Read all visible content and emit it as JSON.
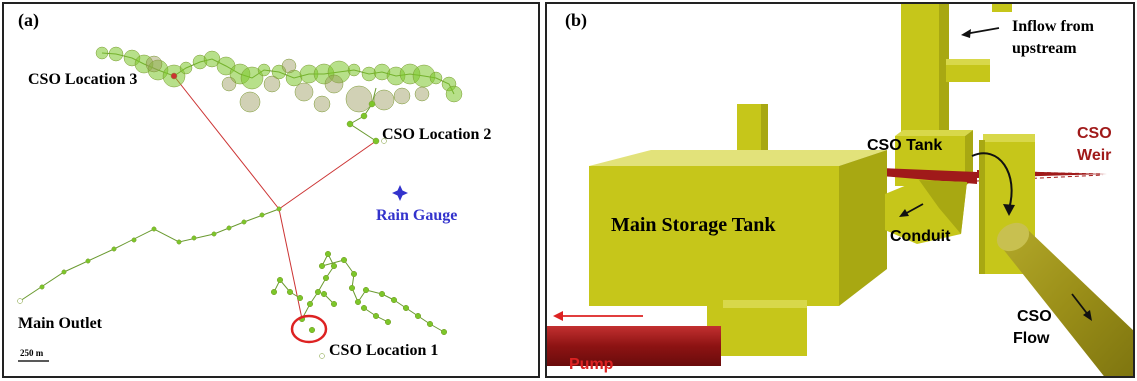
{
  "panel_a": {
    "label": "(a)",
    "cso_location_3": "CSO Location 3",
    "cso_location_2": "CSO Location 2",
    "cso_location_1": "CSO Location 1",
    "rain_gauge": "Rain Gauge",
    "main_outlet": "Main Outlet",
    "scale_bar": "250 m"
  },
  "panel_b": {
    "label": "(b)",
    "inflow_line1": "Inflow from",
    "inflow_line2": "upstream",
    "cso_tank": "CSO Tank",
    "cso_weir_line1": "CSO",
    "cso_weir_line2": "Weir",
    "main_storage_tank": "Main Storage Tank",
    "conduit": "Conduit",
    "cso_flow_line1": "CSO",
    "cso_flow_line2": "Flow",
    "pump": "Pump"
  },
  "colors": {
    "node_green": "#7cc62a",
    "tank_yellow": "#c8c800",
    "cso_red": "#a01a1a",
    "rain_blue": "#3333cc"
  }
}
